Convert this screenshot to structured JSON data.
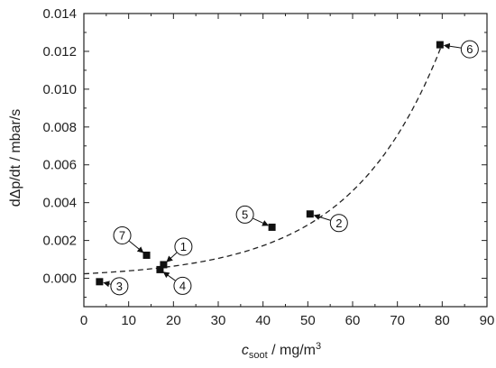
{
  "chart_data": {
    "type": "scatter",
    "xlabel": {
      "main": "c",
      "sub": "soot",
      "unit": " / mg/m",
      "sup": "3"
    },
    "ylabel": "dΔp/dt / mbar/s",
    "xlim": [
      0,
      90
    ],
    "ylim": [
      -0.0015,
      0.014
    ],
    "xticks": [
      0,
      10,
      20,
      30,
      40,
      50,
      60,
      70,
      80,
      90
    ],
    "yticks": [
      0.0,
      0.002,
      0.004,
      0.006,
      0.008,
      0.01,
      0.012,
      0.014
    ],
    "ytick_labels": [
      "0.000",
      "0.002",
      "0.004",
      "0.006",
      "0.008",
      "0.010",
      "0.012",
      "0.014"
    ],
    "xtick_labels": [
      "0",
      "10",
      "20",
      "30",
      "40",
      "50",
      "60",
      "70",
      "80",
      "90"
    ],
    "points": [
      {
        "label": "1",
        "x": 17.8,
        "y": 0.00072
      },
      {
        "label": "2",
        "x": 50.5,
        "y": 0.0034
      },
      {
        "label": "3",
        "x": 3.5,
        "y": -0.00018
      },
      {
        "label": "4",
        "x": 17.0,
        "y": 0.00046
      },
      {
        "label": "5",
        "x": 42.0,
        "y": 0.0027
      },
      {
        "label": "6",
        "x": 79.5,
        "y": 0.01235
      },
      {
        "label": "7",
        "x": 14.0,
        "y": 0.00122
      }
    ],
    "fit": {
      "type": "exponential",
      "style": "dashed",
      "x_range": [
        0,
        80
      ],
      "a": 0.00024,
      "b": 0.0493
    },
    "grid": false,
    "legend": "none"
  }
}
